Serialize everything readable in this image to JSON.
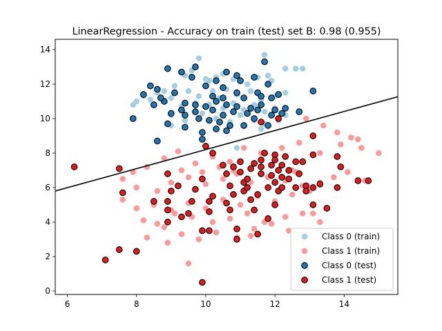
{
  "chart_data": {
    "type": "scatter",
    "title": "LinearRegression - Accuracy on train (test) set B: 0.98 (0.955)",
    "xlabel": "",
    "ylabel": "",
    "xlim": [
      5.65,
      15.55
    ],
    "ylim": [
      -0.2,
      14.6
    ],
    "xticks": [
      6,
      8,
      10,
      12,
      14
    ],
    "yticks": [
      0,
      2,
      4,
      6,
      8,
      10,
      12,
      14
    ],
    "xtick_labels": [
      "6",
      "8",
      "10",
      "12",
      "14"
    ],
    "ytick_labels": [
      "0",
      "2",
      "4",
      "6",
      "8",
      "10",
      "12",
      "14"
    ],
    "grid": false,
    "legend_position": "lower-right",
    "decision_line": {
      "x": [
        5.65,
        15.55
      ],
      "y": [
        5.8,
        11.27
      ],
      "color": "#000000"
    },
    "series": [
      {
        "name": "Class 0 (train)",
        "color": "#a6cee3",
        "edge": "none",
        "points": [
          [
            9.8,
            13.5
          ],
          [
            11.7,
            13.7
          ],
          [
            12.3,
            12.9
          ],
          [
            12.6,
            12.9
          ],
          [
            12.8,
            12.9
          ],
          [
            9.4,
            12.5
          ],
          [
            9.6,
            12.8
          ],
          [
            10.0,
            12.3
          ],
          [
            10.1,
            12.2
          ],
          [
            10.3,
            12.4
          ],
          [
            10.5,
            12.6
          ],
          [
            10.8,
            12.3
          ],
          [
            11.0,
            12.2
          ],
          [
            11.2,
            12.0
          ],
          [
            11.5,
            12.4
          ],
          [
            11.8,
            12.5
          ],
          [
            11.9,
            12.2
          ],
          [
            9.1,
            11.9
          ],
          [
            9.5,
            11.6
          ],
          [
            9.8,
            11.3
          ],
          [
            10.2,
            11.6
          ],
          [
            10.4,
            11.2
          ],
          [
            10.6,
            11.7
          ],
          [
            10.9,
            11.4
          ],
          [
            11.3,
            11.6
          ],
          [
            11.6,
            11.1
          ],
          [
            12.0,
            11.3
          ],
          [
            12.3,
            11.5
          ],
          [
            8.8,
            11.6
          ],
          [
            9.0,
            11.2
          ],
          [
            8.6,
            11.5
          ],
          [
            8.4,
            11.1
          ],
          [
            8.2,
            11.3
          ],
          [
            7.9,
            10.8
          ],
          [
            8.0,
            11.0
          ],
          [
            9.3,
            10.7
          ],
          [
            9.7,
            10.9
          ],
          [
            10.1,
            10.8
          ],
          [
            10.5,
            10.6
          ],
          [
            10.8,
            10.9
          ],
          [
            11.1,
            10.5
          ],
          [
            11.4,
            10.8
          ],
          [
            11.7,
            10.4
          ],
          [
            12.0,
            10.6
          ],
          [
            12.3,
            10.2
          ],
          [
            9.0,
            10.2
          ],
          [
            9.4,
            9.9
          ],
          [
            9.9,
            10.3
          ],
          [
            10.3,
            10.0
          ],
          [
            10.7,
            9.8
          ],
          [
            11.0,
            10.2
          ],
          [
            11.4,
            9.9
          ],
          [
            11.7,
            9.7
          ],
          [
            12.1,
            9.9
          ],
          [
            9.0,
            9.6
          ],
          [
            10.9,
            8.3
          ],
          [
            11.6,
            9.4
          ]
        ]
      },
      {
        "name": "Class 1 (train)",
        "color": "#fb9a99",
        "edge": "none",
        "points": [
          [
            12.9,
            10.0
          ],
          [
            13.4,
            9.6
          ],
          [
            13.8,
            9.2
          ],
          [
            14.2,
            8.9
          ],
          [
            14.4,
            8.8
          ],
          [
            15.0,
            8.0
          ],
          [
            14.5,
            8.3
          ],
          [
            13.9,
            8.5
          ],
          [
            13.3,
            8.0
          ],
          [
            12.7,
            8.6
          ],
          [
            12.2,
            8.3
          ],
          [
            11.6,
            8.0
          ],
          [
            11.1,
            8.3
          ],
          [
            10.7,
            7.5
          ],
          [
            10.2,
            7.8
          ],
          [
            9.7,
            7.4
          ],
          [
            9.2,
            8.1
          ],
          [
            8.8,
            7.7
          ],
          [
            8.3,
            7.2
          ],
          [
            7.9,
            6.9
          ],
          [
            7.6,
            6.5
          ],
          [
            8.0,
            6.0
          ],
          [
            8.6,
            5.8
          ],
          [
            9.0,
            6.3
          ],
          [
            9.5,
            6.6
          ],
          [
            10.0,
            6.2
          ],
          [
            10.5,
            6.5
          ],
          [
            10.9,
            6.8
          ],
          [
            11.3,
            6.3
          ],
          [
            11.8,
            6.6
          ],
          [
            12.3,
            6.4
          ],
          [
            12.8,
            6.1
          ],
          [
            13.3,
            6.3
          ],
          [
            13.7,
            6.6
          ],
          [
            14.1,
            6.9
          ],
          [
            14.6,
            6.4
          ],
          [
            13.0,
            5.8
          ],
          [
            12.5,
            5.6
          ],
          [
            12.0,
            5.2
          ],
          [
            11.5,
            5.5
          ],
          [
            11.0,
            5.0
          ],
          [
            10.5,
            5.3
          ],
          [
            10.0,
            4.8
          ],
          [
            9.5,
            5.1
          ],
          [
            9.0,
            4.7
          ],
          [
            8.5,
            5.0
          ],
          [
            8.0,
            4.8
          ],
          [
            7.6,
            5.3
          ],
          [
            8.2,
            4.1
          ],
          [
            8.8,
            3.7
          ],
          [
            9.3,
            3.3
          ],
          [
            9.8,
            3.0
          ],
          [
            10.3,
            3.4
          ],
          [
            10.9,
            3.1
          ],
          [
            11.4,
            3.6
          ],
          [
            11.9,
            3.9
          ],
          [
            12.4,
            3.5
          ],
          [
            12.9,
            3.2
          ],
          [
            13.3,
            4.0
          ],
          [
            12.8,
            4.5
          ],
          [
            12.3,
            4.3
          ],
          [
            11.7,
            4.0
          ],
          [
            11.2,
            4.5
          ],
          [
            10.7,
            4.2
          ],
          [
            10.2,
            4.0
          ],
          [
            9.6,
            4.3
          ],
          [
            9.1,
            4.5
          ],
          [
            8.6,
            3.9
          ],
          [
            8.3,
            3.1
          ],
          [
            8.9,
            2.8
          ],
          [
            9.5,
            1.6
          ],
          [
            10.9,
            3.0
          ],
          [
            11.3,
            3.2
          ],
          [
            13.1,
            4.5
          ],
          [
            12.6,
            6.9
          ],
          [
            10.8,
            7.0
          ],
          [
            11.9,
            7.3
          ],
          [
            12.5,
            7.0
          ],
          [
            10.4,
            7.2
          ],
          [
            9.9,
            6.9
          ],
          [
            9.3,
            7.0
          ]
        ]
      },
      {
        "name": "Class 0 (test)",
        "color": "#1f78b4",
        "edge": "#000000",
        "points": [
          [
            11.7,
            13.3
          ],
          [
            8.9,
            12.9
          ],
          [
            9.7,
            13.0
          ],
          [
            9.3,
            12.7
          ],
          [
            9.6,
            12.4
          ],
          [
            10.6,
            12.7
          ],
          [
            10.3,
            12.2
          ],
          [
            10.9,
            12.5
          ],
          [
            11.4,
            12.4
          ],
          [
            11.0,
            12.2
          ],
          [
            11.8,
            12.0
          ],
          [
            10.5,
            11.8
          ],
          [
            10.0,
            11.9
          ],
          [
            10.9,
            11.5
          ],
          [
            11.5,
            11.5
          ],
          [
            11.9,
            11.2
          ],
          [
            10.5,
            11.2
          ],
          [
            10.2,
            11.3
          ],
          [
            11.1,
            11.2
          ],
          [
            11.6,
            11.3
          ],
          [
            12.1,
            11.4
          ],
          [
            9.1,
            11.5
          ],
          [
            8.4,
            11.9
          ],
          [
            8.6,
            11.7
          ],
          [
            8.2,
            11.4
          ],
          [
            8.8,
            11.0
          ],
          [
            9.4,
            10.9
          ],
          [
            9.7,
            10.8
          ],
          [
            10.0,
            10.7
          ],
          [
            10.3,
            11.0
          ],
          [
            10.6,
            10.8
          ],
          [
            10.9,
            10.7
          ],
          [
            11.3,
            10.6
          ],
          [
            11.6,
            10.8
          ],
          [
            12.0,
            10.5
          ],
          [
            12.3,
            10.6
          ],
          [
            8.5,
            10.8
          ],
          [
            8.7,
            11.2
          ],
          [
            9.3,
            10.5
          ],
          [
            9.7,
            10.4
          ],
          [
            10.2,
            10.5
          ],
          [
            10.5,
            10.2
          ],
          [
            10.8,
            10.4
          ],
          [
            11.2,
            10.3
          ],
          [
            11.5,
            10.5
          ],
          [
            11.9,
            10.2
          ],
          [
            9.0,
            10.3
          ],
          [
            9.4,
            10.2
          ],
          [
            9.8,
            10.0
          ],
          [
            10.1,
            9.9
          ],
          [
            10.4,
            9.8
          ],
          [
            10.7,
            9.6
          ],
          [
            11.1,
            9.6
          ],
          [
            11.4,
            10.0
          ],
          [
            11.8,
            9.6
          ],
          [
            12.2,
            10.3
          ],
          [
            13.1,
            11.6
          ],
          [
            7.9,
            10.0
          ],
          [
            8.9,
            9.7
          ],
          [
            9.4,
            9.5
          ],
          [
            9.9,
            9.2
          ],
          [
            10.3,
            9.4
          ],
          [
            10.6,
            9.3
          ],
          [
            8.6,
            8.7
          ],
          [
            9.9,
            8.8
          ],
          [
            12.7,
            10.4
          ]
        ]
      },
      {
        "name": "Class 1 (test)",
        "color": "#e31a1c",
        "edge": "#000000",
        "points": [
          [
            6.2,
            7.2
          ],
          [
            7.5,
            7.1
          ],
          [
            7.6,
            5.7
          ],
          [
            7.5,
            2.4
          ],
          [
            7.1,
            1.8
          ],
          [
            8.0,
            2.3
          ],
          [
            9.9,
            0.5
          ],
          [
            8.5,
            5.2
          ],
          [
            8.9,
            4.7
          ],
          [
            8.9,
            5.2
          ],
          [
            9.0,
            5.8
          ],
          [
            9.2,
            6.1
          ],
          [
            8.9,
            6.8
          ],
          [
            8.9,
            4.0
          ],
          [
            9.3,
            4.3
          ],
          [
            9.5,
            4.5
          ],
          [
            9.6,
            5.2
          ],
          [
            9.7,
            5.9
          ],
          [
            9.9,
            6.5
          ],
          [
            9.9,
            3.5
          ],
          [
            10.1,
            3.5
          ],
          [
            10.1,
            5.2
          ],
          [
            10.1,
            4.6
          ],
          [
            10.2,
            5.5
          ],
          [
            10.2,
            8.0
          ],
          [
            10.0,
            8.4
          ],
          [
            10.5,
            7.3
          ],
          [
            10.6,
            6.8
          ],
          [
            10.7,
            6.1
          ],
          [
            10.6,
            5.1
          ],
          [
            10.7,
            4.7
          ],
          [
            10.8,
            5.6
          ],
          [
            10.9,
            3.6
          ],
          [
            10.9,
            3.0
          ],
          [
            11.0,
            6.9
          ],
          [
            11.1,
            6.3
          ],
          [
            11.1,
            5.8
          ],
          [
            11.2,
            6.5
          ],
          [
            11.3,
            7.1
          ],
          [
            11.3,
            5.3
          ],
          [
            11.4,
            4.7
          ],
          [
            11.5,
            3.3
          ],
          [
            11.5,
            5.6
          ],
          [
            11.6,
            6.8
          ],
          [
            11.6,
            7.6
          ],
          [
            11.7,
            8.0
          ],
          [
            11.6,
            9.8
          ],
          [
            11.8,
            6.0
          ],
          [
            11.9,
            7.3
          ],
          [
            11.8,
            4.2
          ],
          [
            12.0,
            6.3
          ],
          [
            12.0,
            5.0
          ],
          [
            12.0,
            7.9
          ],
          [
            12.0,
            7.6
          ],
          [
            12.1,
            5.8
          ],
          [
            12.1,
            7.0
          ],
          [
            12.2,
            6.6
          ],
          [
            12.2,
            6.0
          ],
          [
            12.2,
            7.3
          ],
          [
            12.3,
            7.8
          ],
          [
            12.4,
            7.0
          ],
          [
            12.6,
            6.0
          ],
          [
            12.7,
            6.8
          ],
          [
            12.6,
            7.5
          ],
          [
            12.8,
            7.5
          ],
          [
            12.9,
            6.1
          ],
          [
            13.1,
            6.0
          ],
          [
            13.1,
            5.0
          ],
          [
            13.1,
            7.9
          ],
          [
            13.1,
            9.0
          ],
          [
            13.3,
            6.2
          ],
          [
            13.5,
            4.8
          ],
          [
            13.8,
            6.0
          ],
          [
            13.8,
            7.8
          ],
          [
            13.9,
            7.2
          ],
          [
            14.4,
            6.4
          ],
          [
            14.7,
            6.4
          ],
          [
            12.1,
            10.0
          ],
          [
            11.6,
            7.2
          ],
          [
            11.0,
            7.5
          ],
          [
            10.8,
            7.2
          ],
          [
            11.9,
            6.7
          ],
          [
            12.4,
            6.5
          ],
          [
            12.9,
            5.8
          ],
          [
            11.2,
            6.0
          ],
          [
            11.4,
            7.4
          ]
        ]
      }
    ]
  }
}
